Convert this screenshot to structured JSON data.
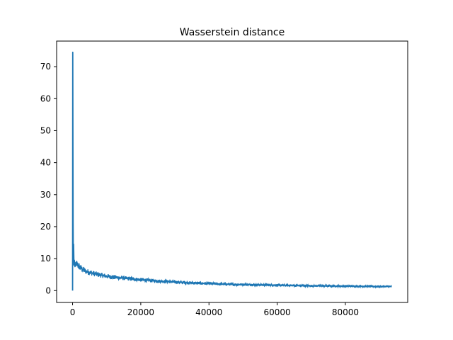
{
  "chart_data": {
    "type": "line",
    "title": "Wasserstein distance",
    "xlabel": "",
    "ylabel": "",
    "xlim": [
      -4680,
      98280
    ],
    "ylim": [
      -3.7,
      78.0
    ],
    "x_ticks": [
      0,
      20000,
      40000,
      60000,
      80000
    ],
    "x_tick_labels": [
      "0",
      "20000",
      "40000",
      "60000",
      "80000"
    ],
    "y_ticks": [
      0,
      10,
      20,
      30,
      40,
      50,
      60,
      70
    ],
    "y_tick_labels": [
      "0",
      "10",
      "20",
      "30",
      "40",
      "50",
      "60",
      "70"
    ],
    "grid": false,
    "legend": "none",
    "series": [
      {
        "color": "#1f77b4",
        "x": [
          0,
          50,
          100,
          150,
          200,
          300,
          400,
          500,
          700,
          1000,
          1500,
          2000,
          3000,
          4000,
          5000,
          6000,
          8000,
          10000,
          12000,
          15000,
          20000,
          25000,
          30000,
          35000,
          40000,
          45000,
          50000,
          55000,
          60000,
          65000,
          70000,
          75000,
          80000,
          85000,
          90000,
          93600
        ],
        "y": [
          0.0,
          74.5,
          46.0,
          22.0,
          12.0,
          14.5,
          8.0,
          9.5,
          7.5,
          8.5,
          8.0,
          7.5,
          6.5,
          6.0,
          5.7,
          5.4,
          4.9,
          4.5,
          4.2,
          3.9,
          3.4,
          3.0,
          2.7,
          2.4,
          2.2,
          2.0,
          1.9,
          1.8,
          1.7,
          1.6,
          1.5,
          1.45,
          1.4,
          1.35,
          1.3,
          1.3
        ],
        "noise_amplitude": [
          0,
          0,
          0,
          0,
          0,
          0,
          0,
          0,
          0,
          1.2,
          1.2,
          1.1,
          1.0,
          0.9,
          0.9,
          0.85,
          0.8,
          0.75,
          0.7,
          0.65,
          0.6,
          0.55,
          0.5,
          0.5,
          0.45,
          0.45,
          0.4,
          0.4,
          0.4,
          0.4,
          0.35,
          0.35,
          0.35,
          0.35,
          0.3,
          0.3
        ]
      }
    ]
  }
}
